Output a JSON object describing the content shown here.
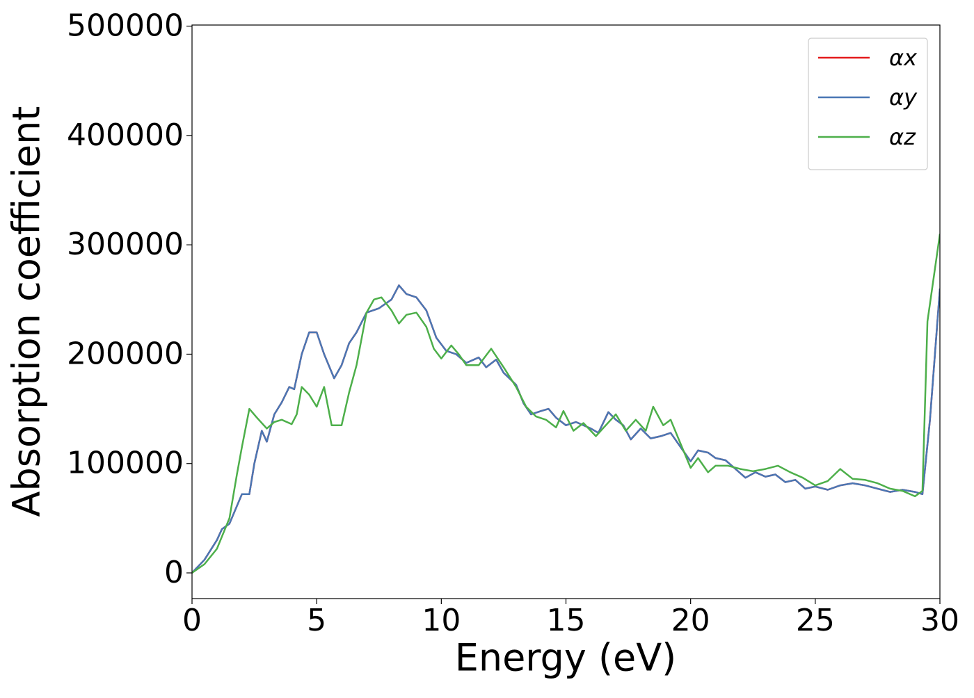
{
  "chart_data": {
    "type": "line",
    "xlabel": "Energy (eV)",
    "ylabel": "Absorption coefficient",
    "xlim": [
      0,
      30
    ],
    "ylim": [
      -23500,
      501000
    ],
    "xticks": [
      0,
      5,
      10,
      15,
      20,
      25,
      30
    ],
    "yticks": [
      0,
      100000,
      200000,
      300000,
      400000,
      500000
    ],
    "legend": "upper right",
    "series": [
      {
        "name": "αx",
        "color": "#e41a1c",
        "x": [
          0,
          0.5,
          1.0,
          1.2,
          1.5,
          2.0,
          2.3,
          2.5,
          2.8,
          3.0,
          3.3,
          3.6,
          3.9,
          4.1,
          4.4,
          4.7,
          5.0,
          5.3,
          5.7,
          6.0,
          6.3,
          6.6,
          7.0,
          7.5,
          8.0,
          8.3,
          8.6,
          9.0,
          9.4,
          9.8,
          10.2,
          10.6,
          11.0,
          11.5,
          11.8,
          12.2,
          12.5,
          13.0,
          13.3,
          13.6,
          14.0,
          14.3,
          14.6,
          15.0,
          15.4,
          16.0,
          16.3,
          16.7,
          17.0,
          17.3,
          17.6,
          18.0,
          18.4,
          18.8,
          19.2,
          19.6,
          20.0,
          20.3,
          20.7,
          21.0,
          21.4,
          21.8,
          22.2,
          22.6,
          23.0,
          23.4,
          23.8,
          24.2,
          24.6,
          25.0,
          25.5,
          26.0,
          26.5,
          27.0,
          27.5,
          28.0,
          28.5,
          29.0,
          29.3,
          29.6,
          30.0
        ],
        "values": [
          0,
          12000,
          30000,
          40000,
          45000,
          72000,
          72000,
          100000,
          130000,
          120000,
          145000,
          156000,
          170000,
          168000,
          200000,
          220000,
          220000,
          200000,
          178000,
          190000,
          210000,
          220000,
          238000,
          242000,
          250000,
          263000,
          255000,
          252000,
          240000,
          215000,
          203000,
          200000,
          192000,
          197000,
          188000,
          195000,
          183000,
          172000,
          155000,
          145000,
          148000,
          150000,
          142000,
          135000,
          138000,
          132000,
          128000,
          147000,
          140000,
          135000,
          122000,
          132000,
          123000,
          125000,
          128000,
          115000,
          102000,
          112000,
          110000,
          105000,
          103000,
          95000,
          87000,
          92000,
          88000,
          90000,
          83000,
          85000,
          77000,
          79000,
          76000,
          80000,
          82000,
          80000,
          77000,
          74000,
          76000,
          74000,
          72000,
          140000,
          260000
        ]
      },
      {
        "name": "αy",
        "color": "#4a77b4",
        "x": [
          0,
          0.5,
          1.0,
          1.2,
          1.5,
          2.0,
          2.3,
          2.5,
          2.8,
          3.0,
          3.3,
          3.6,
          3.9,
          4.1,
          4.4,
          4.7,
          5.0,
          5.3,
          5.7,
          6.0,
          6.3,
          6.6,
          7.0,
          7.5,
          8.0,
          8.3,
          8.6,
          9.0,
          9.4,
          9.8,
          10.2,
          10.6,
          11.0,
          11.5,
          11.8,
          12.2,
          12.5,
          13.0,
          13.3,
          13.6,
          14.0,
          14.3,
          14.6,
          15.0,
          15.4,
          16.0,
          16.3,
          16.7,
          17.0,
          17.3,
          17.6,
          18.0,
          18.4,
          18.8,
          19.2,
          19.6,
          20.0,
          20.3,
          20.7,
          21.0,
          21.4,
          21.8,
          22.2,
          22.6,
          23.0,
          23.4,
          23.8,
          24.2,
          24.6,
          25.0,
          25.5,
          26.0,
          26.5,
          27.0,
          27.5,
          28.0,
          28.5,
          29.0,
          29.3,
          29.6,
          30.0
        ],
        "values": [
          0,
          12000,
          30000,
          40000,
          45000,
          72000,
          72000,
          100000,
          130000,
          120000,
          145000,
          156000,
          170000,
          168000,
          200000,
          220000,
          220000,
          200000,
          178000,
          190000,
          210000,
          220000,
          238000,
          242000,
          250000,
          263000,
          255000,
          252000,
          240000,
          215000,
          203000,
          200000,
          192000,
          197000,
          188000,
          195000,
          183000,
          172000,
          155000,
          145000,
          148000,
          150000,
          142000,
          135000,
          138000,
          132000,
          128000,
          147000,
          140000,
          135000,
          122000,
          132000,
          123000,
          125000,
          128000,
          115000,
          102000,
          112000,
          110000,
          105000,
          103000,
          95000,
          87000,
          92000,
          88000,
          90000,
          83000,
          85000,
          77000,
          79000,
          76000,
          80000,
          82000,
          80000,
          77000,
          74000,
          76000,
          74000,
          72000,
          140000,
          260000
        ]
      },
      {
        "name": "αz",
        "color": "#4daf4a",
        "x": [
          0,
          0.5,
          1.0,
          1.5,
          1.8,
          2.0,
          2.3,
          2.6,
          3.0,
          3.3,
          3.6,
          4.0,
          4.2,
          4.4,
          4.7,
          5.0,
          5.3,
          5.6,
          6.0,
          6.3,
          6.6,
          7.0,
          7.3,
          7.6,
          8.0,
          8.3,
          8.6,
          9.0,
          9.4,
          9.7,
          10.0,
          10.4,
          10.7,
          11.0,
          11.5,
          12.0,
          12.5,
          13.0,
          13.4,
          13.8,
          14.2,
          14.6,
          14.9,
          15.3,
          15.7,
          16.2,
          16.6,
          17.0,
          17.4,
          17.8,
          18.2,
          18.5,
          18.9,
          19.2,
          19.6,
          20.0,
          20.3,
          20.7,
          21.0,
          21.5,
          22.0,
          22.5,
          23.0,
          23.5,
          24.0,
          24.5,
          25.0,
          25.5,
          26.0,
          26.5,
          27.0,
          27.5,
          28.0,
          28.5,
          29.0,
          29.3,
          29.5,
          30.0
        ],
        "values": [
          0,
          8000,
          22000,
          50000,
          90000,
          115000,
          150000,
          142000,
          132000,
          138000,
          140000,
          136000,
          145000,
          170000,
          163000,
          152000,
          170000,
          135000,
          135000,
          165000,
          190000,
          238000,
          250000,
          252000,
          240000,
          228000,
          236000,
          238000,
          225000,
          205000,
          196000,
          208000,
          200000,
          190000,
          190000,
          205000,
          188000,
          170000,
          152000,
          143000,
          140000,
          133000,
          148000,
          130000,
          137000,
          125000,
          135000,
          145000,
          130000,
          140000,
          130000,
          152000,
          135000,
          140000,
          118000,
          96000,
          105000,
          92000,
          98000,
          98000,
          95000,
          93000,
          95000,
          98000,
          92000,
          87000,
          80000,
          84000,
          95000,
          86000,
          85000,
          82000,
          77000,
          75000,
          70000,
          75000,
          230000,
          310000
        ]
      }
    ]
  }
}
